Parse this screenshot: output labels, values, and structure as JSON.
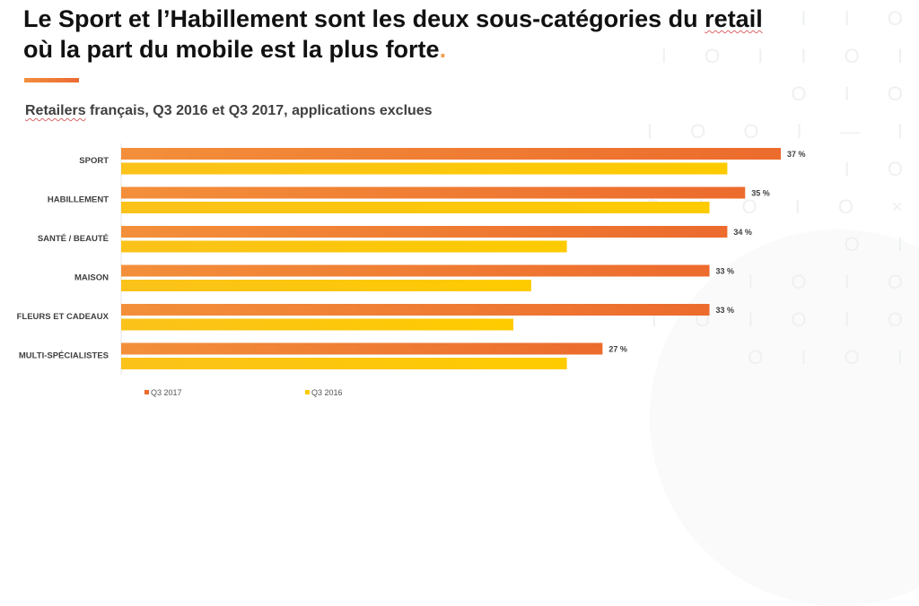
{
  "header": {
    "title_line1_a": "Le Sport et l’Habillement sont les deux sous-catégories du ",
    "title_line1_b": "retail",
    "title_line2": "où la part du mobile est la plus forte",
    "title_period": ".",
    "subtitle_a": "Retailers",
    "subtitle_b": " français, Q3 2016 et Q3 2017, applications exclues"
  },
  "decoration": {
    "pattern_rows": [
      "I O I I O",
      "I O I I O  I O I O",
      "I O  O I — I I O",
      "O I O I O  × O I",
      "I O I O",
      "I O I O I O",
      "O  I O I"
    ]
  },
  "colors": {
    "q3_2017": "#ec6b2d",
    "q3_2016": "#fecb00",
    "accent": "#f0a050"
  },
  "chart_data": {
    "type": "bar",
    "orientation": "horizontal",
    "title": "Retailers français, Q3 2016 et Q3 2017, applications exclues",
    "categories": [
      "SPORT",
      "HABILLEMENT",
      "SANTÉ / BEAUTÉ",
      "MAISON",
      "FLEURS ET CADEAUX",
      "MULTI-SPÉCIALISTES"
    ],
    "series": [
      {
        "name": "Q3 2017",
        "values": [
          37,
          35,
          34,
          33,
          33,
          27
        ],
        "labels": [
          "37 %",
          "35 %",
          "34 %",
          "33 %",
          "33 %",
          "27 %"
        ]
      },
      {
        "name": "Q3 2016",
        "values": [
          34,
          33,
          25,
          23,
          22,
          25
        ]
      }
    ],
    "xlabel": "",
    "ylabel": "",
    "xlim": [
      0,
      37
    ],
    "grid": false,
    "legend": "bottom"
  }
}
